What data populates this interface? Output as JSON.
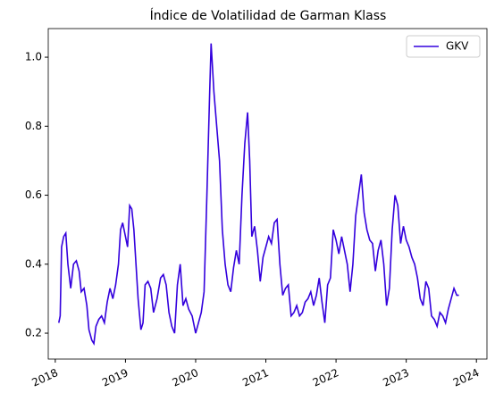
{
  "chart_data": {
    "type": "line",
    "title": "Índice de Volatilidad de Garman Klass",
    "xlim": [
      2017.9,
      2024.15
    ],
    "xticks": [
      2018,
      2019,
      2020,
      2021,
      2022,
      2023,
      2024
    ],
    "ylim": [
      0.125,
      1.083
    ],
    "yticks": [
      {
        "value": 0.2,
        "label": "0.2"
      },
      {
        "value": 0.4,
        "label": "0.4"
      },
      {
        "value": 0.6,
        "label": "0.6"
      },
      {
        "value": 0.8,
        "label": "0.8"
      },
      {
        "value": 1.0,
        "label": "1.0"
      }
    ],
    "legend": "upper right",
    "grid": false,
    "x": [
      2018.05,
      2018.07,
      2018.09,
      2018.12,
      2018.15,
      2018.18,
      2018.22,
      2018.26,
      2018.3,
      2018.34,
      2018.37,
      2018.41,
      2018.45,
      2018.48,
      2018.52,
      2018.55,
      2018.58,
      2018.62,
      2018.66,
      2018.7,
      2018.74,
      2018.78,
      2018.82,
      2018.86,
      2018.9,
      2018.93,
      2018.96,
      2019.0,
      2019.03,
      2019.06,
      2019.09,
      2019.12,
      2019.15,
      2019.18,
      2019.22,
      2019.25,
      2019.28,
      2019.32,
      2019.36,
      2019.4,
      2019.45,
      2019.5,
      2019.54,
      2019.58,
      2019.62,
      2019.66,
      2019.7,
      2019.74,
      2019.78,
      2019.82,
      2019.86,
      2019.9,
      2019.95,
      2020.0,
      2020.04,
      2020.08,
      2020.12,
      2020.16,
      2020.2,
      2020.22,
      2020.26,
      2020.3,
      2020.34,
      2020.38,
      2020.42,
      2020.46,
      2020.5,
      2020.54,
      2020.58,
      2020.62,
      2020.66,
      2020.7,
      2020.74,
      2020.77,
      2020.8,
      2020.84,
      2020.88,
      2020.92,
      2020.96,
      2021.0,
      2021.04,
      2021.08,
      2021.12,
      2021.16,
      2021.2,
      2021.24,
      2021.28,
      2021.32,
      2021.36,
      2021.4,
      2021.44,
      2021.48,
      2021.52,
      2021.56,
      2021.6,
      2021.64,
      2021.68,
      2021.72,
      2021.76,
      2021.8,
      2021.84,
      2021.88,
      2021.92,
      2021.96,
      2022.0,
      2022.04,
      2022.08,
      2022.12,
      2022.16,
      2022.2,
      2022.24,
      2022.28,
      2022.32,
      2022.36,
      2022.4,
      2022.44,
      2022.48,
      2022.52,
      2022.56,
      2022.6,
      2022.64,
      2022.68,
      2022.72,
      2022.76,
      2022.8,
      2022.84,
      2022.88,
      2022.92,
      2022.96,
      2023.0,
      2023.04,
      2023.08,
      2023.12,
      2023.16,
      2023.2,
      2023.24,
      2023.28,
      2023.32,
      2023.36,
      2023.4,
      2023.44,
      2023.48,
      2023.52,
      2023.56,
      2023.6,
      2023.64,
      2023.68,
      2023.72,
      2023.75
    ],
    "series": [
      {
        "name": "GKV",
        "color": "#3300dd",
        "values": [
          0.23,
          0.25,
          0.45,
          0.48,
          0.49,
          0.4,
          0.33,
          0.4,
          0.41,
          0.38,
          0.32,
          0.33,
          0.28,
          0.21,
          0.18,
          0.17,
          0.22,
          0.24,
          0.25,
          0.23,
          0.29,
          0.33,
          0.3,
          0.34,
          0.4,
          0.5,
          0.52,
          0.48,
          0.45,
          0.57,
          0.56,
          0.5,
          0.4,
          0.3,
          0.21,
          0.23,
          0.34,
          0.35,
          0.33,
          0.26,
          0.3,
          0.36,
          0.37,
          0.34,
          0.26,
          0.22,
          0.2,
          0.34,
          0.4,
          0.28,
          0.3,
          0.27,
          0.25,
          0.2,
          0.23,
          0.26,
          0.32,
          0.6,
          0.9,
          1.04,
          0.9,
          0.8,
          0.7,
          0.5,
          0.4,
          0.34,
          0.32,
          0.39,
          0.44,
          0.4,
          0.6,
          0.75,
          0.84,
          0.7,
          0.48,
          0.51,
          0.44,
          0.35,
          0.42,
          0.45,
          0.48,
          0.46,
          0.52,
          0.53,
          0.4,
          0.31,
          0.33,
          0.34,
          0.25,
          0.26,
          0.28,
          0.25,
          0.26,
          0.29,
          0.3,
          0.32,
          0.28,
          0.31,
          0.36,
          0.29,
          0.23,
          0.34,
          0.36,
          0.5,
          0.47,
          0.43,
          0.48,
          0.44,
          0.4,
          0.32,
          0.4,
          0.54,
          0.6,
          0.66,
          0.55,
          0.5,
          0.47,
          0.46,
          0.38,
          0.44,
          0.47,
          0.4,
          0.28,
          0.33,
          0.5,
          0.6,
          0.57,
          0.46,
          0.51,
          0.47,
          0.45,
          0.42,
          0.4,
          0.36,
          0.3,
          0.28,
          0.35,
          0.33,
          0.25,
          0.24,
          0.22,
          0.26,
          0.25,
          0.23,
          0.27,
          0.3,
          0.33,
          0.31,
          0.31
        ]
      }
    ]
  }
}
